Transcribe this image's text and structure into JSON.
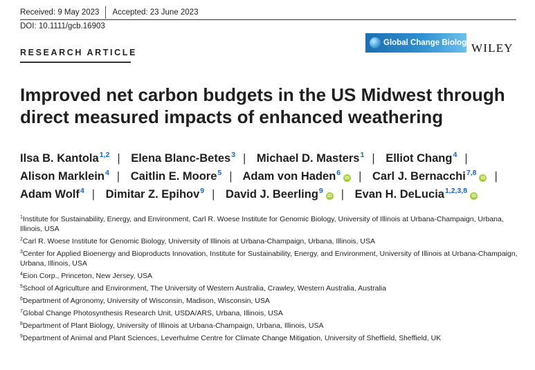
{
  "header": {
    "received": "Received: 9 May 2023",
    "accepted": "Accepted: 23 June 2023",
    "doi": "DOI: 10.1111/gcb.16903",
    "article_type": "RESEARCH ARTICLE",
    "journal": "Global Change Biology",
    "publisher": "WILEY"
  },
  "title": "Improved net carbon budgets in the US Midwest through direct measured impacts of enhanced weathering",
  "authors": [
    {
      "name": "Ilsa B. Kantola",
      "sup": "1,2",
      "orcid": false
    },
    {
      "name": "Elena Blanc-Betes",
      "sup": "3",
      "orcid": false
    },
    {
      "name": "Michael D. Masters",
      "sup": "1",
      "orcid": false
    },
    {
      "name": "Elliot Chang",
      "sup": "4",
      "orcid": false
    },
    {
      "name": "Alison Marklein",
      "sup": "4",
      "orcid": false
    },
    {
      "name": "Caitlin E. Moore",
      "sup": "5",
      "orcid": false
    },
    {
      "name": "Adam von Haden",
      "sup": "6",
      "orcid": true
    },
    {
      "name": "Carl J. Bernacchi",
      "sup": "7,8",
      "orcid": true
    },
    {
      "name": "Adam Wolf",
      "sup": "4",
      "orcid": false
    },
    {
      "name": "Dimitar Z. Epihov",
      "sup": "9",
      "orcid": false
    },
    {
      "name": "David J. Beerling",
      "sup": "9",
      "orcid": true
    },
    {
      "name": "Evan H. DeLucia",
      "sup": "1,2,3,8",
      "orcid": true
    }
  ],
  "orcid_label": "iD",
  "separator": "|",
  "affiliations": [
    {
      "num": "1",
      "text": "Institute for Sustainability, Energy, and Environment, Carl R. Woese Institute for Genomic Biology, University of Illinois at Urbana-Champaign, Urbana, Illinois, USA"
    },
    {
      "num": "2",
      "text": "Carl R. Woese Institute for Genomic Biology, University of Illinois at Urbana-Champaign, Urbana, Illinois, USA"
    },
    {
      "num": "3",
      "text": "Center for Applied Bioenergy and Bioproducts Innovation, Institute for Sustainability, Energy, and Environment, University of Illinois at Urbana-Champaign, Urbana, Illinois, USA"
    },
    {
      "num": "4",
      "text": "Eion Corp., Princeton, New Jersey, USA"
    },
    {
      "num": "5",
      "text": "School of Agriculture and Environment, The University of Western Australia, Crawley, Western Australia, Australia"
    },
    {
      "num": "6",
      "text": "Department of Agronomy, University of Wisconsin, Madison, Wisconsin, USA"
    },
    {
      "num": "7",
      "text": "Global Change Photosynthesis Research Unit, USDA/ARS, Urbana, Illinois, USA"
    },
    {
      "num": "8",
      "text": "Department of Plant Biology, University of Illinois at Urbana-Champaign, Urbana, Illinois, USA"
    },
    {
      "num": "9",
      "text": "Department of Animal and Plant Sciences, Leverhulme Centre for Climate Change Mitigation, University of Sheffield, Sheffield, UK"
    }
  ]
}
